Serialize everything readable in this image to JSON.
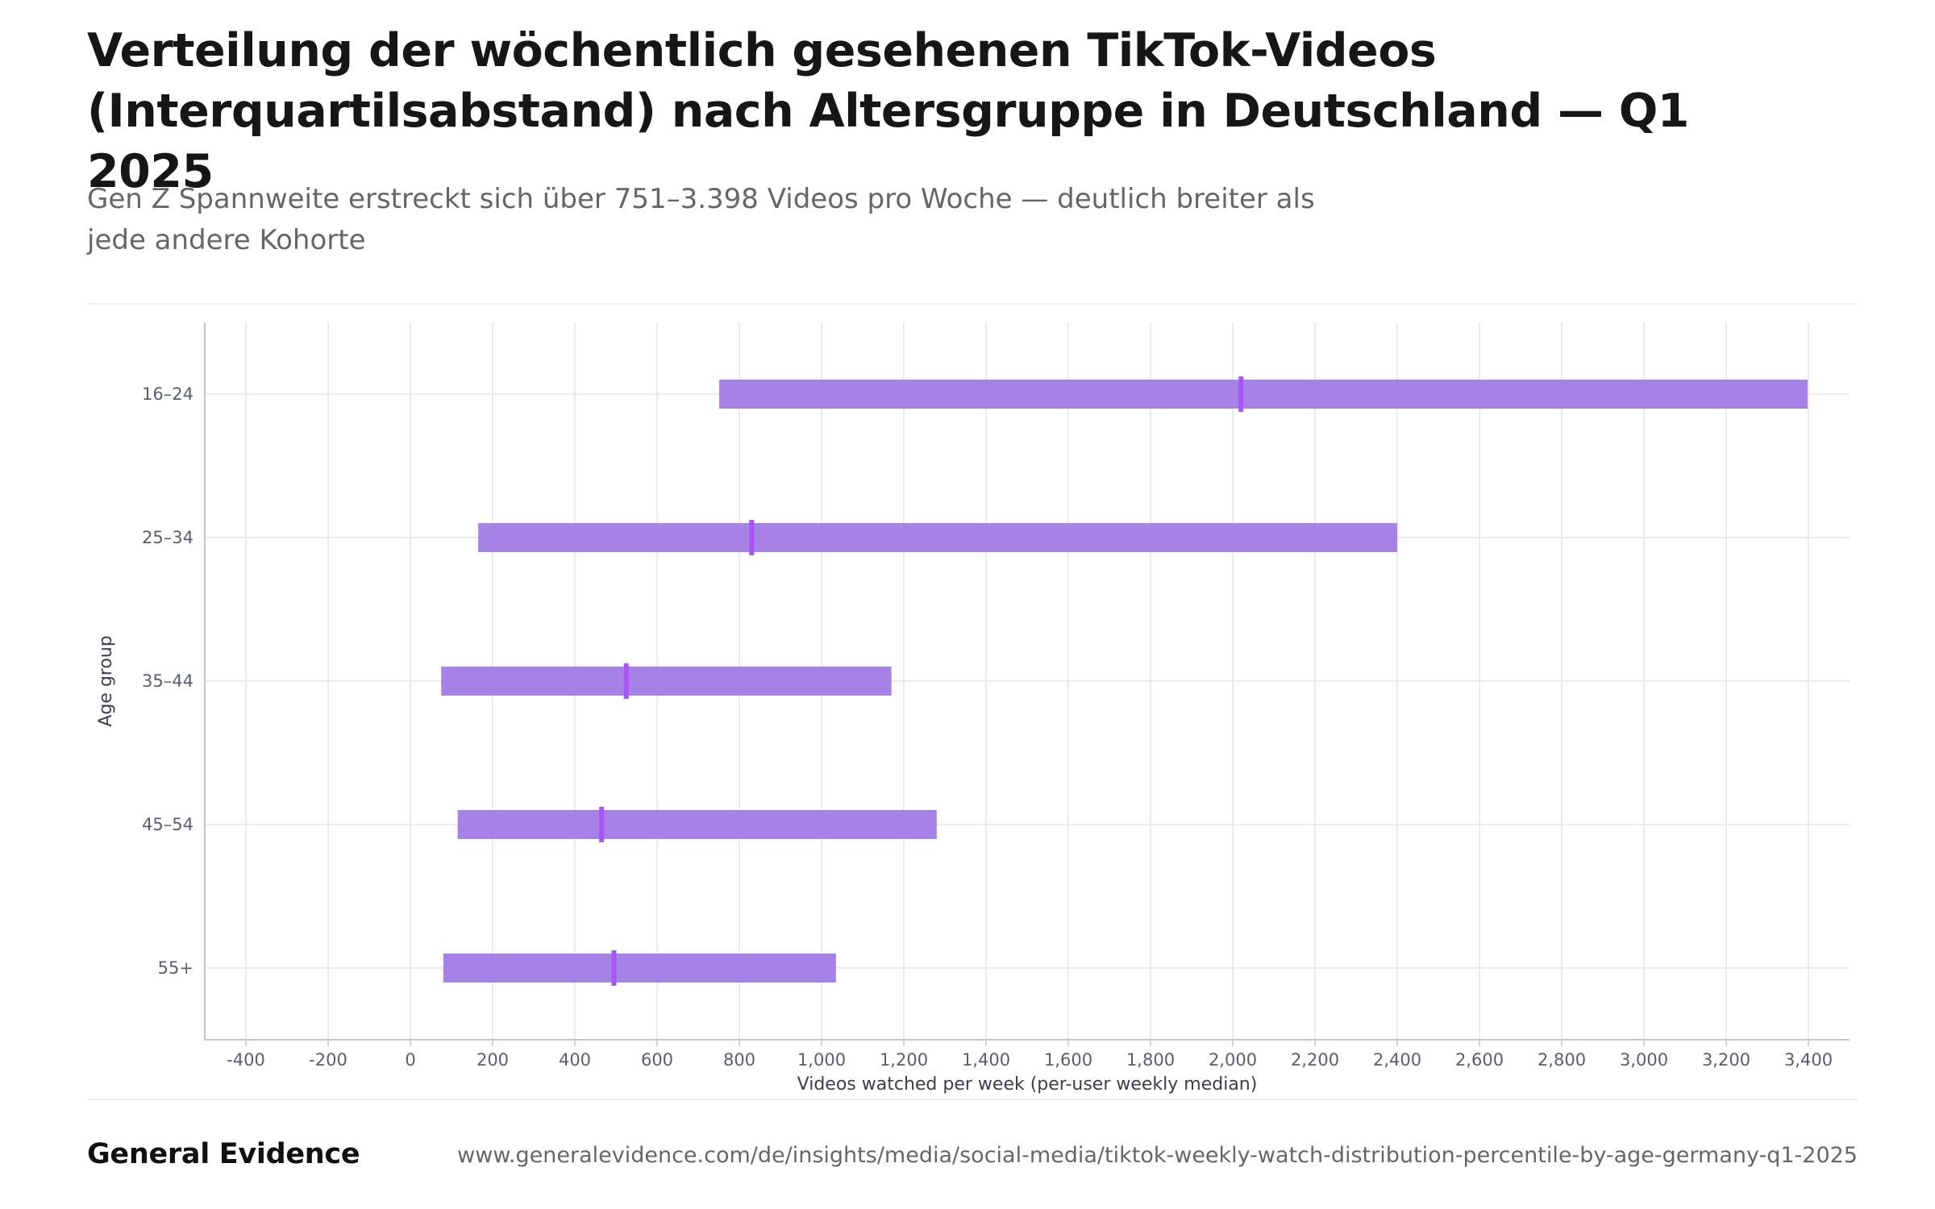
{
  "header": {
    "title": "Verteilung der wöchentlich gesehenen TikTok-Videos (Interquartilsabstand) nach Altersgruppe in Deutschland — Q1 2025",
    "subtitle": "Gen Z Spannweite erstreckt sich über 751–3.398 Videos pro Woche — deutlich breiter als jede andere Kohorte"
  },
  "footer": {
    "brand": "General Evidence",
    "url": "www.generalevidence.com/de/insights/media/social-media/tiktok-weekly-watch-distribution-percentile-by-age-germany-q1-2025"
  },
  "colors": {
    "bar": "#a782e6",
    "median": "#a855f7",
    "grid": "#e4e4ea",
    "axis": "#c4c4cc",
    "tick_text": "#5a5f6e"
  },
  "chart_data": {
    "type": "bar",
    "orientation": "horizontal",
    "title": "",
    "xlabel": "Videos watched per week (per-user weekly median)",
    "ylabel": "Age group",
    "xlim": [
      -500,
      3500
    ],
    "xticks": [
      -400,
      -200,
      0,
      200,
      400,
      600,
      800,
      1000,
      1200,
      1400,
      1600,
      1800,
      2000,
      2200,
      2400,
      2600,
      2800,
      3000,
      3200,
      3400
    ],
    "xtick_labels": [
      "-400",
      "-200",
      "0",
      "200",
      "400",
      "600",
      "800",
      "1,000",
      "1,200",
      "1,400",
      "1,600",
      "1,800",
      "2,000",
      "2,200",
      "2,400",
      "2,600",
      "2,800",
      "3,000",
      "3,200",
      "3,400"
    ],
    "grid": true,
    "categories": [
      "16–24",
      "25–34",
      "35–44",
      "45–54",
      "55+"
    ],
    "series": [
      {
        "name": "",
        "key": "p25",
        "values": [
          751,
          165,
          75,
          115,
          80
        ]
      },
      {
        "name": "",
        "key": "median",
        "values": [
          2020,
          830,
          525,
          465,
          495
        ]
      },
      {
        "name": "",
        "key": "p75",
        "values": [
          3398,
          2400,
          1170,
          1280,
          1035
        ]
      }
    ]
  }
}
